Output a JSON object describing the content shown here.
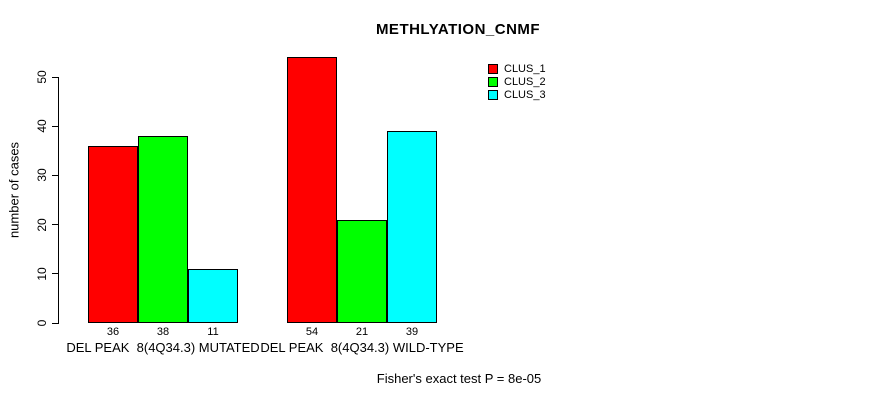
{
  "chart_data": {
    "type": "bar",
    "title": "METHLYATION_CNMF",
    "ylabel": "number of cases",
    "xlabel": "",
    "categories": [
      "DEL PEAK  8(4Q34.3) MUTATED",
      "DEL PEAK  8(4Q34.3) WILD-TYPE"
    ],
    "series": [
      {
        "name": "CLUS_1",
        "color": "#ff0000",
        "values": [
          36,
          54
        ]
      },
      {
        "name": "CLUS_2",
        "color": "#00ff00",
        "values": [
          38,
          21
        ]
      },
      {
        "name": "CLUS_3",
        "color": "#00ffff",
        "values": [
          11,
          39
        ]
      }
    ],
    "bar_value_labels": [
      [
        36,
        38,
        11
      ],
      [
        54,
        21,
        39
      ]
    ],
    "yticks": [
      0,
      10,
      20,
      30,
      40,
      50
    ],
    "ylim": [
      0,
      55
    ],
    "grid": false,
    "legend_position": "top-right",
    "legend_entries": [
      "CLUS_1",
      "CLUS_2",
      "CLUS_3"
    ],
    "footnote": "Fisher's exact test P = 8e-05"
  }
}
